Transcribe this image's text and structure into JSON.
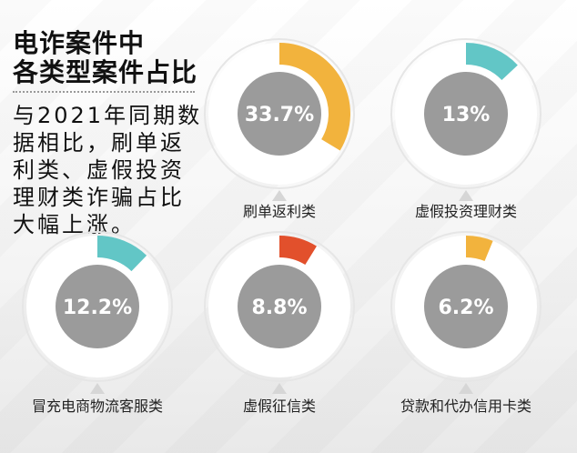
{
  "headline": {
    "line1": "电诈案件中",
    "line2": "各类型案件占比"
  },
  "summary_text": "与2021年同期数据相比，刷单返利类、虚假投资理财类诈骗占比大幅上涨。",
  "colors": {
    "center_circle": "#9b9b9b",
    "ring": "#e6e6e6",
    "orange": "#f2b33d",
    "teal": "#62c6c6",
    "red": "#e2502c",
    "label_text": "#222222"
  },
  "chart_data": {
    "type": "pie",
    "unit": "%",
    "categories": [
      "刷单返利类",
      "虚假投资理财类",
      "冒充电商物流客服类",
      "虚假征信类",
      "贷款和代办信用卡类"
    ],
    "values": [
      33.7,
      13,
      12.2,
      8.8,
      6.2
    ],
    "value_labels": [
      "33.7%",
      "13%",
      "12.2%",
      "8.8%",
      "6.2%"
    ],
    "series_colors": [
      "#f2b33d",
      "#62c6c6",
      "#62c6c6",
      "#e2502c",
      "#f2b33d"
    ]
  }
}
